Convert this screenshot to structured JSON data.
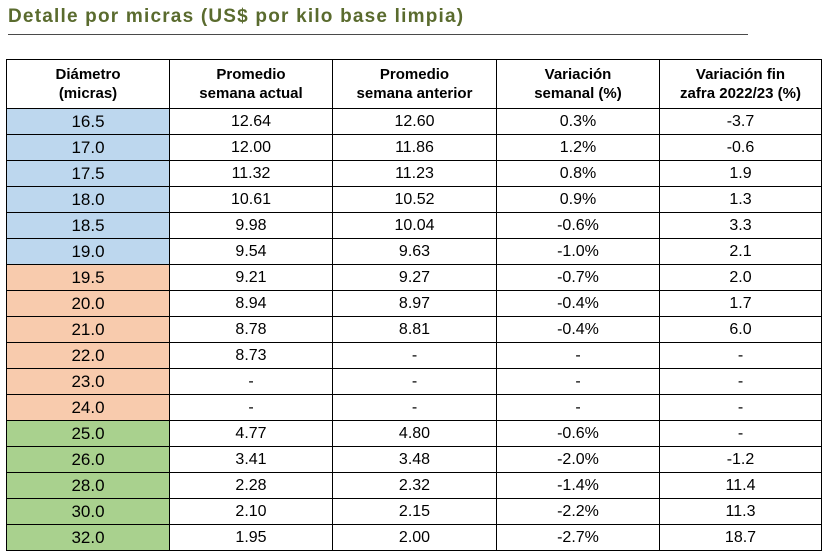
{
  "title": "Detalle por micras (US$ por kilo base limpia)",
  "colors": {
    "title": "#5a6b2e",
    "group_blue": "#bdd7ee",
    "group_orange": "#f8cbad",
    "group_green": "#a9d18e"
  },
  "headers": [
    [
      "Diámetro",
      "(micras)"
    ],
    [
      "Promedio",
      "semana actual"
    ],
    [
      "Promedio",
      "semana anterior"
    ],
    [
      "Variación",
      "semanal (%)"
    ],
    [
      "Variación fin",
      "zafra 2022/23 (%)"
    ]
  ],
  "rows": [
    {
      "group": "blue",
      "cells": [
        "16.5",
        "12.64",
        "12.60",
        "0.3%",
        "-3.7"
      ]
    },
    {
      "group": "blue",
      "cells": [
        "17.0",
        "12.00",
        "11.86",
        "1.2%",
        "-0.6"
      ]
    },
    {
      "group": "blue",
      "cells": [
        "17.5",
        "11.32",
        "11.23",
        "0.8%",
        "1.9"
      ]
    },
    {
      "group": "blue",
      "cells": [
        "18.0",
        "10.61",
        "10.52",
        "0.9%",
        "1.3"
      ]
    },
    {
      "group": "blue",
      "cells": [
        "18.5",
        "9.98",
        "10.04",
        "-0.6%",
        "3.3"
      ]
    },
    {
      "group": "blue",
      "cells": [
        "19.0",
        "9.54",
        "9.63",
        "-1.0%",
        "2.1"
      ]
    },
    {
      "group": "orange",
      "cells": [
        "19.5",
        "9.21",
        "9.27",
        "-0.7%",
        "2.0"
      ]
    },
    {
      "group": "orange",
      "cells": [
        "20.0",
        "8.94",
        "8.97",
        "-0.4%",
        "1.7"
      ]
    },
    {
      "group": "orange",
      "cells": [
        "21.0",
        "8.78",
        "8.81",
        "-0.4%",
        "6.0"
      ]
    },
    {
      "group": "orange",
      "cells": [
        "22.0",
        "8.73",
        "-",
        "-",
        "-"
      ]
    },
    {
      "group": "orange",
      "cells": [
        "23.0",
        "-",
        "-",
        "-",
        "-"
      ]
    },
    {
      "group": "orange",
      "cells": [
        "24.0",
        "-",
        "-",
        "-",
        "-"
      ]
    },
    {
      "group": "green",
      "cells": [
        "25.0",
        "4.77",
        "4.80",
        "-0.6%",
        "-"
      ]
    },
    {
      "group": "green",
      "cells": [
        "26.0",
        "3.41",
        "3.48",
        "-2.0%",
        "-1.2"
      ]
    },
    {
      "group": "green",
      "cells": [
        "28.0",
        "2.28",
        "2.32",
        "-1.4%",
        "11.4"
      ]
    },
    {
      "group": "green",
      "cells": [
        "30.0",
        "2.10",
        "2.15",
        "-2.2%",
        "11.3"
      ]
    },
    {
      "group": "green",
      "cells": [
        "32.0",
        "1.95",
        "2.00",
        "-2.7%",
        "18.7"
      ]
    }
  ]
}
